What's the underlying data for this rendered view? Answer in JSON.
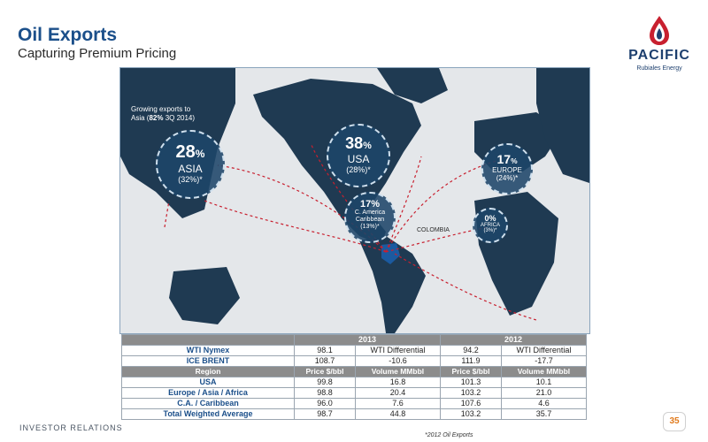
{
  "header": {
    "title": "Oil Exports",
    "subtitle": "Capturing Premium Pricing"
  },
  "logo": {
    "word": "PACIFIC",
    "sub": "Rubiales Energy"
  },
  "map": {
    "asia_note_line1": "Growing exports to",
    "asia_note_line2_pre": "Asia (",
    "asia_note_bold": "82%",
    "asia_note_post": " 3Q 2014)",
    "colombia_label": "COLOMBIA",
    "bubbles": {
      "asia": {
        "pct": "28",
        "unit": "%",
        "name": "ASIA",
        "sub": "(32%)*"
      },
      "usa": {
        "pct": "38",
        "unit": "%",
        "name": "USA",
        "sub": "(28%)*"
      },
      "carib": {
        "pct": "17%",
        "name_line1": "C. America",
        "name_line2": "Caribbean",
        "sub": "(13%)*"
      },
      "europe": {
        "pct": "17",
        "unit": "%",
        "name": "EUROPE",
        "sub": "(24%)*"
      },
      "africa": {
        "pct": "0%",
        "name": "AFRICA",
        "sub": "(3%)*"
      }
    }
  },
  "table": {
    "years": [
      "2013",
      "2012"
    ],
    "benchmarks": [
      {
        "name": "WTI Nymex",
        "v2013": "98.1",
        "d2013": "WTI Differential",
        "v2012": "94.2",
        "d2012": "WTI Differential"
      },
      {
        "name": "ICE BRENT",
        "v2013": "108.7",
        "d2013": "-10.6",
        "v2012": "111.9",
        "d2012": "-17.7"
      }
    ],
    "col_headers": {
      "region": "Region",
      "price": "Price $/bbl",
      "volume": "Volume MMbbl"
    },
    "rows": [
      {
        "region": "USA",
        "p2013": "99.8",
        "v2013": "16.8",
        "p2012": "101.3",
        "v2012": "10.1"
      },
      {
        "region": "Europe / Asia / Africa",
        "p2013": "98.8",
        "v2013": "20.4",
        "p2012": "103.2",
        "v2012": "21.0"
      },
      {
        "region": "C.A. / Caribbean",
        "p2013": "96.0",
        "v2013": "7.6",
        "p2012": "107.6",
        "v2012": "4.6"
      },
      {
        "region": "Total Weighted Average",
        "p2013": "98.7",
        "v2013": "44.8",
        "p2012": "103.2",
        "v2012": "35.7"
      }
    ]
  },
  "footer": {
    "footnote": "*2012 Oil Exports",
    "section": "INVESTOR RELATIONS",
    "page": "35"
  }
}
